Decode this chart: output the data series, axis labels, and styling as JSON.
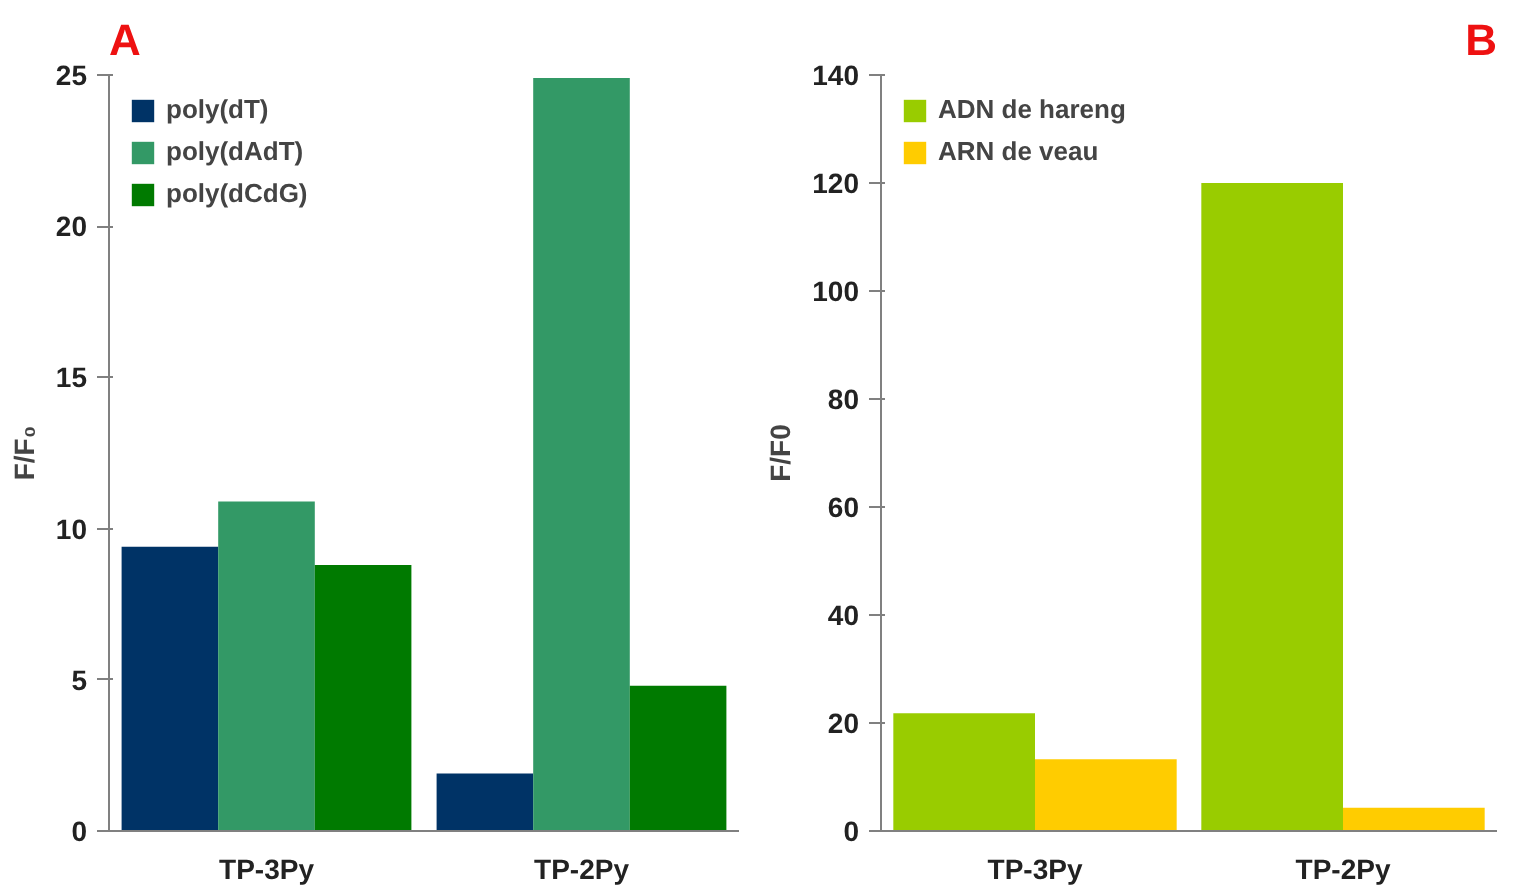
{
  "chart_data": [
    {
      "type": "bar",
      "title": "A",
      "ylabel": "F/F₀",
      "categories": [
        "TP-3Py",
        "TP-2Py"
      ],
      "ylim": [
        0,
        25
      ],
      "yticks": [
        0,
        5,
        10,
        15,
        20,
        25
      ],
      "legend": "top left",
      "series": [
        {
          "name": "poly(dT)",
          "color": "#003366",
          "values": [
            9.4,
            1.9
          ]
        },
        {
          "name": "poly(dAdT)",
          "color": "#339966",
          "values": [
            10.9,
            24.9
          ]
        },
        {
          "name": "poly(dCdG)",
          "color": "#007a00",
          "values": [
            8.8,
            4.8
          ]
        }
      ]
    },
    {
      "type": "bar",
      "title": "B",
      "ylabel": "F/F0",
      "categories": [
        "TP-3Py",
        "TP-2Py"
      ],
      "ylim": [
        0,
        140
      ],
      "yticks": [
        0,
        20,
        40,
        60,
        80,
        100,
        120,
        140
      ],
      "legend": "top left",
      "series": [
        {
          "name": "ADN de hareng",
          "color": "#99cc00",
          "values": [
            21.8,
            120
          ]
        },
        {
          "name": "ARN de veau",
          "color": "#ffcc00",
          "values": [
            13.3,
            4.3
          ]
        }
      ]
    }
  ]
}
